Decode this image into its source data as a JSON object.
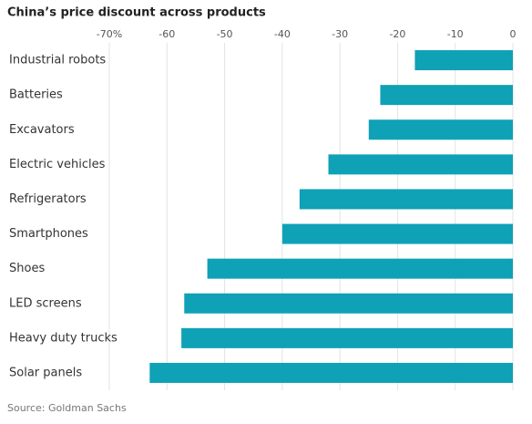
{
  "chart_data": {
    "type": "bar",
    "orientation": "horizontal",
    "title": "China’s price discount across products",
    "source": "Source: Goldman Sachs",
    "categories": [
      "Industrial robots",
      "Batteries",
      "Excavators",
      "Electric vehicles",
      "Refrigerators",
      "Smartphones",
      "Shoes",
      "LED screens",
      "Heavy duty trucks",
      "Solar panels"
    ],
    "values": [
      -17,
      -23,
      -25,
      -32,
      -37,
      -40,
      -53,
      -57,
      -57.5,
      -63
    ],
    "color": "#0fa1b6",
    "xlim": [
      -70,
      0
    ],
    "xticks": [
      {
        "value": -70,
        "label": "-70%"
      },
      -60,
      -50,
      -40,
      -30,
      -20,
      -10,
      0
    ],
    "grid": true
  }
}
